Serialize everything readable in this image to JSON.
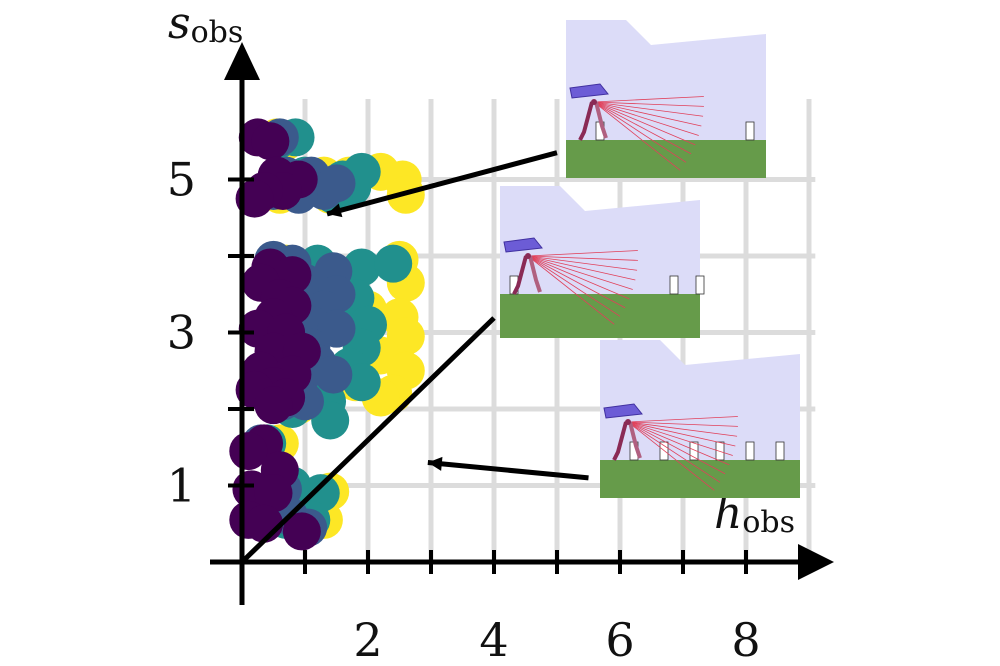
{
  "chart_data": {
    "type": "scatter",
    "title": "",
    "xlabel": {
      "main": "h",
      "sub": "obs"
    },
    "ylabel": {
      "main": "s",
      "sub": "obs"
    },
    "xlim": [
      0,
      9
    ],
    "ylim": [
      0,
      6
    ],
    "x_ticks": [
      2,
      4,
      6,
      8
    ],
    "y_ticks": [
      1,
      3,
      5
    ],
    "grid": true,
    "colors": {
      "purple": "#440154",
      "blue": "#3b5a8c",
      "teal": "#21908d",
      "yellow": "#fde725",
      "sky": "#dcdcf8",
      "ground": "#669b4a",
      "robot": "#8a2a55",
      "robot_head": "#6c5cd6",
      "ray": "#e0405a"
    },
    "series": [
      {
        "color_key": "yellow",
        "points": [
          [
            0.55,
            5.55
          ],
          [
            0.7,
            5.5
          ],
          [
            1.3,
            5.05
          ],
          [
            1.7,
            5.05
          ],
          [
            2.2,
            5.1
          ],
          [
            2.55,
            5.0
          ],
          [
            2.6,
            4.8
          ],
          [
            1.4,
            4.8
          ],
          [
            0.6,
            4.8
          ],
          [
            0.7,
            3.9
          ],
          [
            2.5,
            3.95
          ],
          [
            2.6,
            3.65
          ],
          [
            1.5,
            3.7
          ],
          [
            1.7,
            3.6
          ],
          [
            2.0,
            3.3
          ],
          [
            2.5,
            3.2
          ],
          [
            2.6,
            2.95
          ],
          [
            2.2,
            2.7
          ],
          [
            2.6,
            2.5
          ],
          [
            2.4,
            2.2
          ],
          [
            1.8,
            2.35
          ],
          [
            1.2,
            2.35
          ],
          [
            0.6,
            2.55
          ],
          [
            0.9,
            2.05
          ],
          [
            1.2,
            2.1
          ],
          [
            2.2,
            2.15
          ],
          [
            0.6,
            1.55
          ],
          [
            0.75,
            0.95
          ],
          [
            1.4,
            0.92
          ],
          [
            0.8,
            0.6
          ],
          [
            1.3,
            0.55
          ]
        ]
      },
      {
        "color_key": "teal",
        "points": [
          [
            0.55,
            5.5
          ],
          [
            0.85,
            5.55
          ],
          [
            1.0,
            5.05
          ],
          [
            1.6,
            5.0
          ],
          [
            1.75,
            4.9
          ],
          [
            1.9,
            5.1
          ],
          [
            1.45,
            4.8
          ],
          [
            0.5,
            3.9
          ],
          [
            1.2,
            3.9
          ],
          [
            1.9,
            3.85
          ],
          [
            2.4,
            3.9
          ],
          [
            1.4,
            3.7
          ],
          [
            1.8,
            3.45
          ],
          [
            1.6,
            3.1
          ],
          [
            2.0,
            3.1
          ],
          [
            1.9,
            2.8
          ],
          [
            1.7,
            2.55
          ],
          [
            1.9,
            2.35
          ],
          [
            1.2,
            2.3
          ],
          [
            1.35,
            2.1
          ],
          [
            0.8,
            2.0
          ],
          [
            1.4,
            1.85
          ],
          [
            0.4,
            1.55
          ],
          [
            0.8,
            1.0
          ],
          [
            1.25,
            0.9
          ],
          [
            0.7,
            0.55
          ],
          [
            1.1,
            0.55
          ]
        ]
      },
      {
        "color_key": "blue",
        "points": [
          [
            0.6,
            5.55
          ],
          [
            0.7,
            5.05
          ],
          [
            1.1,
            5.05
          ],
          [
            1.3,
            4.85
          ],
          [
            1.5,
            4.95
          ],
          [
            0.9,
            4.8
          ],
          [
            0.5,
            4.85
          ],
          [
            0.5,
            3.95
          ],
          [
            0.8,
            3.9
          ],
          [
            1.0,
            3.65
          ],
          [
            1.45,
            3.8
          ],
          [
            1.5,
            3.5
          ],
          [
            1.3,
            3.3
          ],
          [
            1.1,
            3.1
          ],
          [
            1.5,
            3.05
          ],
          [
            1.1,
            2.8
          ],
          [
            1.2,
            2.6
          ],
          [
            1.45,
            2.45
          ],
          [
            0.9,
            2.35
          ],
          [
            1.0,
            2.1
          ],
          [
            0.65,
            2.1
          ],
          [
            0.3,
            1.55
          ],
          [
            0.65,
            0.95
          ],
          [
            0.75,
            0.6
          ],
          [
            1.05,
            0.45
          ]
        ]
      },
      {
        "color_key": "purple",
        "points": [
          [
            0.25,
            5.55
          ],
          [
            0.45,
            5.5
          ],
          [
            0.55,
            5.05
          ],
          [
            0.9,
            5.0
          ],
          [
            0.65,
            4.85
          ],
          [
            0.35,
            4.85
          ],
          [
            0.2,
            4.75
          ],
          [
            0.45,
            3.85
          ],
          [
            0.8,
            3.75
          ],
          [
            0.3,
            3.65
          ],
          [
            0.6,
            3.45
          ],
          [
            0.8,
            3.35
          ],
          [
            0.5,
            3.2
          ],
          [
            0.25,
            3.05
          ],
          [
            0.7,
            3.0
          ],
          [
            0.5,
            2.75
          ],
          [
            0.95,
            2.75
          ],
          [
            0.3,
            2.5
          ],
          [
            0.8,
            2.45
          ],
          [
            0.5,
            2.3
          ],
          [
            0.2,
            2.25
          ],
          [
            0.7,
            2.15
          ],
          [
            0.5,
            2.05
          ],
          [
            0.35,
            1.55
          ],
          [
            0.1,
            1.45
          ],
          [
            0.6,
            1.2
          ],
          [
            0.15,
            0.95
          ],
          [
            0.5,
            0.9
          ],
          [
            0.1,
            0.55
          ],
          [
            0.35,
            0.5
          ],
          [
            0.95,
            0.4
          ]
        ]
      }
    ],
    "arrows": [
      {
        "from": [
          5.0,
          5.35
        ],
        "to": [
          1.35,
          4.55
        ]
      },
      {
        "from": [
          5.5,
          1.1
        ],
        "to": [
          2.95,
          1.3
        ]
      }
    ],
    "diagonal_line": [
      [
        0,
        0
      ],
      [
        4.0,
        3.25
      ]
    ],
    "insets": [
      {
        "name": "inset-top",
        "obstacles": [
          0.15,
          0.9
        ]
      },
      {
        "name": "inset-middle",
        "obstacles": [
          0.05,
          0.85,
          0.98
        ]
      },
      {
        "name": "inset-bottom",
        "obstacles": [
          0.15,
          0.3,
          0.45,
          0.58,
          0.73,
          0.88
        ]
      }
    ]
  }
}
